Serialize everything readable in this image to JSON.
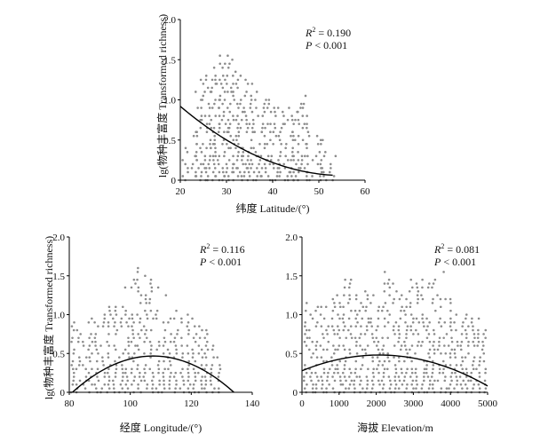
{
  "chart_data": [
    {
      "id": "latitude",
      "type": "scatter",
      "xlabel": "纬度 Latitude/(°)",
      "ylabel": "lg(物种丰富度 Transformed richness)",
      "xlim": [
        20,
        60
      ],
      "ylim": [
        0,
        2.0
      ],
      "x_ticks": [
        "20",
        "30",
        "40",
        "50",
        "60"
      ],
      "y_ticks": [
        "0",
        "0.5",
        "1.0",
        "1.5",
        "2.0"
      ],
      "stats": {
        "r2_label": "R",
        "r2_sup": "2",
        "r2_value": " = 0.190",
        "p_label": "P",
        "p_value": " < 0.001"
      },
      "point_color": "#8c8c8c",
      "curve_color": "#000000",
      "trend": {
        "type": "quadratic",
        "x": [
          20,
          30,
          40,
          50,
          53
        ],
        "y": [
          0.92,
          0.5,
          0.22,
          0.08,
          0.06
        ]
      },
      "point_columns": {
        "x": [
          21,
          23,
          24,
          25,
          26,
          27,
          28,
          29,
          30,
          31,
          32,
          33,
          34,
          35,
          36,
          37,
          38,
          39,
          40,
          41,
          42,
          43,
          44,
          45,
          46,
          47,
          48,
          50,
          51,
          53
        ],
        "ymax": [
          0.5,
          0.6,
          1.1,
          1.4,
          1.45,
          1.45,
          1.45,
          1.55,
          1.65,
          1.5,
          1.45,
          1.3,
          1.25,
          1.2,
          1.1,
          1.0,
          1.05,
          1.0,
          0.9,
          0.95,
          0.9,
          1.0,
          0.9,
          1.0,
          0.95,
          1.05,
          0.7,
          0.6,
          0.5,
          0.3
        ]
      }
    },
    {
      "id": "longitude",
      "type": "scatter",
      "xlabel": "经度 Longitude/(°)",
      "ylabel": "lg(物种丰富度 Transformed richness)",
      "xlim": [
        80,
        140
      ],
      "ylim": [
        0,
        2.0
      ],
      "x_ticks": [
        "80",
        "100",
        "120",
        "140"
      ],
      "y_ticks": [
        "0",
        "0.5",
        "1.0",
        "1.5",
        "2.0"
      ],
      "stats": {
        "r2_label": "R",
        "r2_sup": "2",
        "r2_value": " = 0.116",
        "p_label": "P",
        "p_value": " < 0.001"
      },
      "point_color": "#8c8c8c",
      "curve_color": "#000000",
      "trend": {
        "type": "quadratic",
        "x": [
          81,
          90,
          100,
          107,
          115,
          125,
          134
        ],
        "y": [
          0.0,
          0.26,
          0.43,
          0.47,
          0.43,
          0.26,
          0.0
        ]
      },
      "point_columns": {
        "x": [
          81,
          83,
          85,
          87,
          89,
          91,
          93,
          95,
          97,
          99,
          101,
          103,
          105,
          107,
          109,
          111,
          113,
          115,
          117,
          119,
          121,
          123,
          125,
          127,
          129
        ],
        "ymax": [
          0.9,
          1.0,
          0.9,
          1.0,
          1.05,
          1.0,
          1.1,
          1.1,
          1.25,
          1.35,
          1.45,
          1.65,
          1.5,
          1.45,
          1.35,
          1.25,
          1.15,
          1.1,
          1.05,
          1.0,
          0.95,
          0.9,
          0.8,
          0.6,
          0.5
        ]
      }
    },
    {
      "id": "elevation",
      "type": "scatter",
      "xlabel": "海拔 Elevation/m",
      "ylabel": "",
      "xlim": [
        0,
        5000
      ],
      "ylim": [
        0,
        2.0
      ],
      "x_ticks": [
        "0",
        "1000",
        "2000",
        "3000",
        "4000",
        "5000"
      ],
      "y_ticks": [
        "0",
        "0.5",
        "1.0",
        "1.5",
        "2.0"
      ],
      "stats": {
        "r2_label": "R",
        "r2_sup": "2",
        "r2_value": " = 0.081",
        "p_label": "P",
        "p_value": " < 0.001"
      },
      "point_color": "#8c8c8c",
      "curve_color": "#000000",
      "trend": {
        "type": "quadratic",
        "x": [
          0,
          1000,
          2000,
          2300,
          3000,
          4000,
          5000
        ],
        "y": [
          0.28,
          0.42,
          0.48,
          0.48,
          0.44,
          0.31,
          0.08
        ]
      },
      "point_columns": {
        "x": [
          100,
          250,
          400,
          550,
          700,
          850,
          1000,
          1150,
          1300,
          1450,
          1600,
          1750,
          1900,
          2050,
          2200,
          2350,
          2500,
          2650,
          2800,
          2950,
          3100,
          3250,
          3400,
          3550,
          3700,
          3850,
          4000,
          4150,
          4300,
          4450,
          4600,
          4750,
          4900
        ],
        "ymax": [
          1.25,
          1.25,
          1.15,
          1.1,
          1.2,
          1.3,
          1.4,
          1.5,
          1.45,
          1.3,
          1.4,
          1.35,
          1.25,
          1.2,
          1.55,
          1.45,
          1.4,
          1.3,
          1.2,
          1.45,
          1.45,
          1.45,
          1.5,
          1.45,
          1.3,
          1.6,
          1.2,
          1.1,
          0.9,
          1.0,
          1.0,
          0.95,
          0.8
        ]
      }
    }
  ]
}
